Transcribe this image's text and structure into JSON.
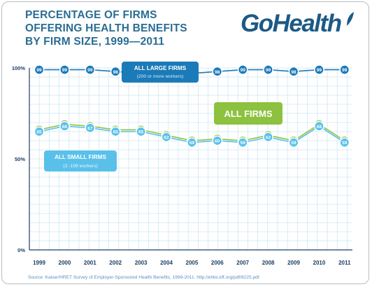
{
  "title_lines": [
    "PERCENTAGE OF FIRMS",
    "OFFERING HEALTH BENEFITS",
    "BY FIRM SIZE, 1999—2011"
  ],
  "logo": {
    "text": "GoHealth",
    "icon": "leaf-icon"
  },
  "source": "Source: Kaiser/HRET Survey of Employer-Sponsored Health Benefits, 1999-2011.  http://ehbs.kff.org/pdf/8225.pdf",
  "colors": {
    "large": "#1b7ab8",
    "all": "#8cc23f",
    "small": "#59c0ea",
    "title": "#2a6d93",
    "grid": "#cde7f5"
  },
  "chart_data": {
    "type": "line",
    "x": [
      "1999",
      "2000",
      "2001",
      "2002",
      "2003",
      "2004",
      "2005",
      "2006",
      "2007",
      "2008",
      "2009",
      "2010",
      "2011"
    ],
    "ylim": [
      0,
      100
    ],
    "yticks": [
      "0%",
      "50%",
      "100%"
    ],
    "grid": true,
    "series": [
      {
        "name": "ALL LARGE FIRMS",
        "subtitle": "(200 or more workers)",
        "key": "large",
        "values": [
          99,
          99,
          99,
          98,
          97,
          98,
          97,
          98,
          99,
          99,
          98,
          99,
          99
        ]
      },
      {
        "name": "ALL FIRMS",
        "subtitle": "",
        "key": "all",
        "values": [
          66,
          69,
          68,
          66,
          66,
          63,
          60,
          61,
          60,
          63,
          60,
          69,
          60
        ]
      },
      {
        "name": "ALL SMALL FIRMS",
        "subtitle": "(3 -199 workers)",
        "key": "small",
        "values": [
          65,
          68,
          67,
          65,
          65,
          62,
          59,
          60,
          59,
          62,
          59,
          68,
          59
        ]
      }
    ]
  }
}
